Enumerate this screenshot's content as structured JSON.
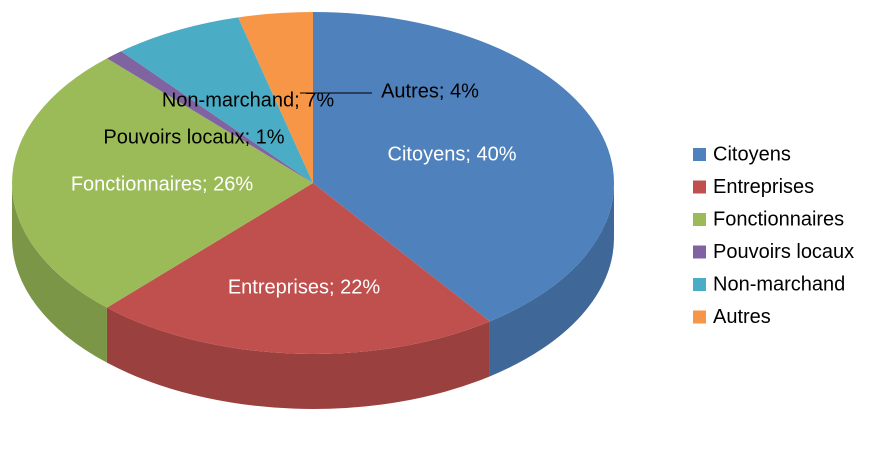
{
  "chart_data": {
    "type": "pie",
    "categories": [
      "Citoyens",
      "Entreprises",
      "Fonctionnaires",
      "Pouvoirs locaux",
      "Non-marchand",
      "Autres"
    ],
    "values": [
      40,
      22,
      26,
      1,
      7,
      4
    ],
    "value_labels": [
      "Citoyens; 40%",
      "Entreprises; 22%",
      "Fonctionnaires; 26%",
      "Pouvoirs locaux; 1%",
      "Non-marchand; 7%",
      "Autres; 4%"
    ],
    "colors": [
      "#4f81bd",
      "#c0504d",
      "#9bbb59",
      "#8064a2",
      "#4bacc6",
      "#f79646"
    ],
    "legend": "right"
  }
}
